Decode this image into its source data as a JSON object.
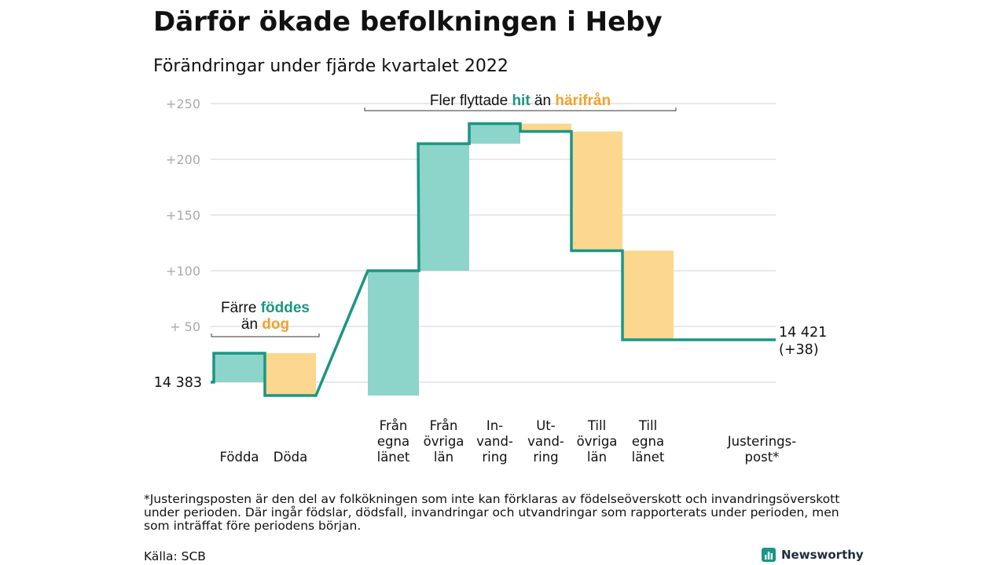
{
  "title": "Därför ökade befolkningen i Heby",
  "subtitle": "Förändringar under fjärde kvartalet 2022",
  "colors": {
    "positive": "#8dd4cb",
    "negative": "#fbd78f",
    "line": "#1a9683",
    "accent_text_pos": "#1a9683",
    "accent_text_neg": "#f3a12b",
    "grid": "#d9d9d9",
    "tick": "#aaaaaa"
  },
  "chart_data": {
    "type": "waterfall",
    "start": {
      "label": "14 383",
      "value": 14383
    },
    "end": {
      "label_value": "14 421",
      "label_change": "(+38)",
      "value": 14421
    },
    "steps": [
      {
        "label_lines": [
          "Födda"
        ],
        "change": 26,
        "from": 0,
        "to": 26,
        "kind": "positive"
      },
      {
        "label_lines": [
          "Döda"
        ],
        "change": -38,
        "from": 26,
        "to": -12,
        "kind": "negative"
      },
      {
        "label_lines": [
          "Från",
          "egna",
          "länet"
        ],
        "change": 112,
        "from": -12,
        "to": 100,
        "kind": "positive"
      },
      {
        "label_lines": [
          "Från",
          "övriga",
          "län"
        ],
        "change": 114,
        "from": 100,
        "to": 214,
        "kind": "positive"
      },
      {
        "label_lines": [
          "In-",
          "vand-",
          "ring"
        ],
        "change": 18,
        "from": 214,
        "to": 232,
        "kind": "positive"
      },
      {
        "label_lines": [
          "Ut-",
          "vand-",
          "ring"
        ],
        "change": -7,
        "from": 232,
        "to": 225,
        "kind": "negative"
      },
      {
        "label_lines": [
          "Till",
          "övriga",
          "län"
        ],
        "change": -107,
        "from": 225,
        "to": 118,
        "kind": "negative"
      },
      {
        "label_lines": [
          "Till",
          "egna",
          "länet"
        ],
        "change": -80,
        "from": 118,
        "to": 38,
        "kind": "negative"
      },
      {
        "label_lines": [
          "Justerings-",
          "post*"
        ],
        "change": 0,
        "from": 38,
        "to": 38,
        "kind": "neutral"
      }
    ],
    "y_axis": {
      "min": -12,
      "max": 250,
      "ticks": [
        {
          "value": 250,
          "label": "+250"
        },
        {
          "value": 200,
          "label": "+200"
        },
        {
          "value": 150,
          "label": "+150"
        },
        {
          "value": 100,
          "label": "+100"
        },
        {
          "value": 50,
          "label": "+ 50"
        },
        {
          "value": 0,
          "label": ""
        }
      ]
    },
    "annotations": [
      {
        "segments": [
          {
            "text": "Färre ",
            "style": "plain"
          },
          {
            "text": "föddes",
            "style": "pos"
          }
        ],
        "segments2": [
          {
            "text": "än ",
            "style": "plain"
          },
          {
            "text": "dog",
            "style": "neg"
          }
        ],
        "span_steps": [
          0,
          1
        ]
      },
      {
        "segments": [
          {
            "text": "Fler flyttade ",
            "style": "plain"
          },
          {
            "text": "hit",
            "style": "pos"
          },
          {
            "text": " än ",
            "style": "plain"
          },
          {
            "text": "härifrån",
            "style": "neg"
          }
        ],
        "span_steps": [
          2,
          7
        ]
      }
    ]
  },
  "footnote": "*Justeringsposten är den del av folkökningen som inte kan förklaras av födelseöverskott och invandringsöverskott under perioden. Där ingår födslar, dödsfall, invandringar och utvandringar som rapporterats under perioden, men som inträffat före periodens början.",
  "source": "Källa: SCB",
  "brand": "Newsworthy"
}
